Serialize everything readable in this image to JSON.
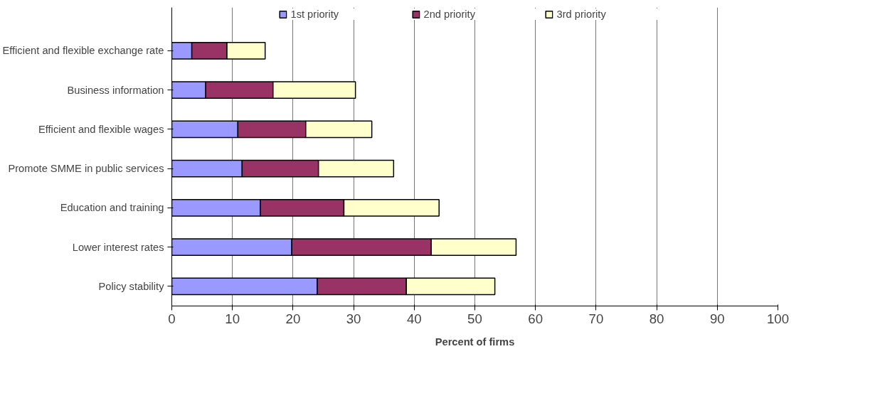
{
  "chart_data": {
    "type": "bar",
    "orientation": "horizontal",
    "stacked": true,
    "categories": [
      "Efficient and flexible exchange rate",
      "Business information",
      "Efficient and flexible wages",
      "Promote SMME in public services",
      "Education and training",
      "Lower interest rates",
      "Policy stability"
    ],
    "series": [
      {
        "name": "1st priority",
        "color": "#9999ff",
        "values": [
          3.3,
          5.6,
          10.9,
          11.6,
          14.6,
          19.8,
          24.0
        ]
      },
      {
        "name": "2nd priority",
        "color": "#993366",
        "values": [
          5.8,
          11.1,
          11.2,
          12.6,
          13.8,
          23.0,
          14.7
        ]
      },
      {
        "name": "3rd priority",
        "color": "#ffffcc",
        "values": [
          6.3,
          13.6,
          10.9,
          12.4,
          15.7,
          14.0,
          14.6
        ]
      }
    ],
    "xlabel": "Percent of firms",
    "xlim": [
      0,
      100
    ],
    "xticks": [
      0,
      10,
      20,
      30,
      40,
      50,
      60,
      70,
      80,
      90,
      100
    ],
    "grid": "x",
    "legend": "top"
  }
}
